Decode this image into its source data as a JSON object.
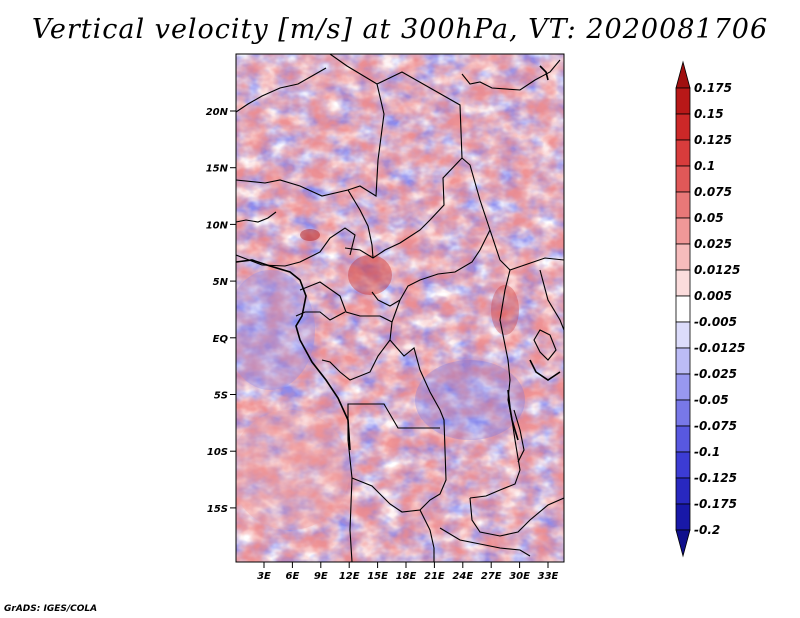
{
  "title": "Vertical velocity [m/s] at 300hPa, VT: 2020081706",
  "credit": "GrADS: IGES/COLA",
  "map": {
    "variable": "Vertical velocity",
    "units": "m/s",
    "level": "300hPa",
    "valid_time": "2020081706",
    "lat_labels": [
      "20N",
      "15N",
      "10N",
      "5N",
      "EQ",
      "5S",
      "10S",
      "15S"
    ],
    "lon_labels": [
      "3E",
      "6E",
      "9E",
      "12E",
      "15E",
      "18E",
      "21E",
      "24E",
      "27E",
      "30E",
      "33E"
    ]
  },
  "colorbar": {
    "labels": [
      "0.175",
      "0.15",
      "0.125",
      "0.1",
      "0.075",
      "0.05",
      "0.025",
      "0.0125",
      "0.005",
      "-0.005",
      "-0.0125",
      "-0.025",
      "-0.05",
      "-0.075",
      "-0.1",
      "-0.125",
      "-0.175",
      "-0.2"
    ],
    "colors": [
      "#a01010",
      "#b81818",
      "#cc2828",
      "#d83c3c",
      "#e05858",
      "#e87878",
      "#f09898",
      "#f6bcbc",
      "#fbdcdc",
      "#ffffff",
      "#dcdcfb",
      "#bcbcf6",
      "#9898f0",
      "#7878e8",
      "#5858e0",
      "#3c3cd4",
      "#2828c0",
      "#1818a8",
      "#10108c"
    ]
  }
}
